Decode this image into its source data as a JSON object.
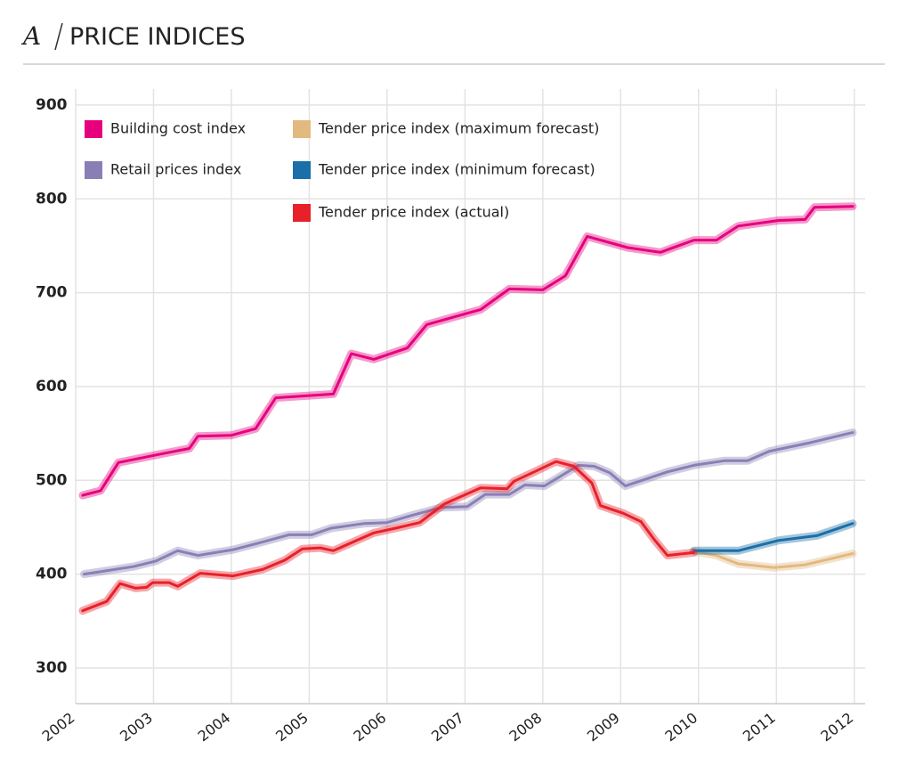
{
  "chart_data": {
    "type": "line",
    "panel": "A",
    "title": "PRICE INDICES",
    "xlim": [
      2002,
      2012.14
    ],
    "xticks": [
      2002,
      2003,
      2004,
      2005,
      2006,
      2007,
      2008,
      2009,
      2010,
      2011,
      2012
    ],
    "ylim": [
      262,
      917
    ],
    "yticks": [
      300,
      400,
      500,
      600,
      700,
      800,
      900
    ],
    "grid": true,
    "series": [
      {
        "name": "Building cost index",
        "color": "#e6007e",
        "x": [
          2002.09,
          2002.32,
          2002.55,
          2003.09,
          2003.46,
          2003.57,
          2004.0,
          2004.31,
          2004.57,
          2005.31,
          2005.54,
          2005.83,
          2006.26,
          2006.51,
          2007.2,
          2007.57,
          2008.0,
          2008.29,
          2008.57,
          2009.09,
          2009.51,
          2009.94,
          2010.23,
          2010.51,
          2011.03,
          2011.37,
          2011.49,
          2011.98
        ],
        "values": [
          484,
          489,
          519,
          528,
          534,
          547,
          548,
          555,
          588,
          592,
          635,
          629,
          641,
          666,
          682,
          704,
          703,
          718,
          760,
          748,
          743,
          756,
          756,
          771,
          777,
          778,
          791,
          792
        ]
      },
      {
        "name": "Retail prices index",
        "color": "#8a7fb5",
        "x": [
          2002.11,
          2002.74,
          2003.03,
          2003.31,
          2003.57,
          2004.02,
          2004.34,
          2004.74,
          2005.03,
          2005.28,
          2005.71,
          2006.0,
          2006.29,
          2006.69,
          2007.03,
          2007.26,
          2007.57,
          2007.77,
          2008.02,
          2008.46,
          2008.66,
          2008.86,
          2009.06,
          2009.6,
          2009.94,
          2010.34,
          2010.63,
          2010.91,
          2011.43,
          2011.98
        ],
        "values": [
          400,
          408,
          414,
          425,
          420,
          426,
          433,
          442,
          442,
          449,
          454,
          455,
          462,
          471,
          472,
          485,
          485,
          495,
          494,
          516,
          515,
          508,
          494,
          509,
          516,
          521,
          521,
          531,
          540,
          551
        ]
      },
      {
        "name": "Tender price index (maximum forecast)",
        "color": "#e2b97f",
        "x": [
          2009.94,
          2010.23,
          2010.51,
          2010.97,
          2011.37,
          2011.98
        ],
        "values": [
          424,
          420,
          411,
          407,
          410,
          422
        ]
      },
      {
        "name": "Tender price index (minimum forecast)",
        "color": "#1a6fa8",
        "x": [
          2009.94,
          2010.51,
          2011.03,
          2011.52,
          2011.98
        ],
        "values": [
          425,
          425,
          436,
          441,
          454
        ]
      },
      {
        "name": "Tender price index (actual)",
        "color": "#e8202a",
        "x": [
          2002.09,
          2002.4,
          2002.57,
          2002.77,
          2002.91,
          2002.99,
          2003.2,
          2003.31,
          2003.6,
          2004.02,
          2004.4,
          2004.69,
          2004.91,
          2005.14,
          2005.31,
          2005.83,
          2006.11,
          2006.42,
          2006.74,
          2007.2,
          2007.54,
          2007.63,
          2007.89,
          2008.17,
          2008.4,
          2008.63,
          2008.74,
          2009.03,
          2009.26,
          2009.43,
          2009.6,
          2009.94
        ],
        "values": [
          361,
          371,
          390,
          385,
          386,
          391,
          391,
          387,
          401,
          398,
          405,
          415,
          427,
          428,
          425,
          444,
          449,
          455,
          475,
          492,
          491,
          499,
          509,
          520,
          515,
          497,
          473,
          465,
          456,
          437,
          420,
          423
        ]
      }
    ]
  }
}
